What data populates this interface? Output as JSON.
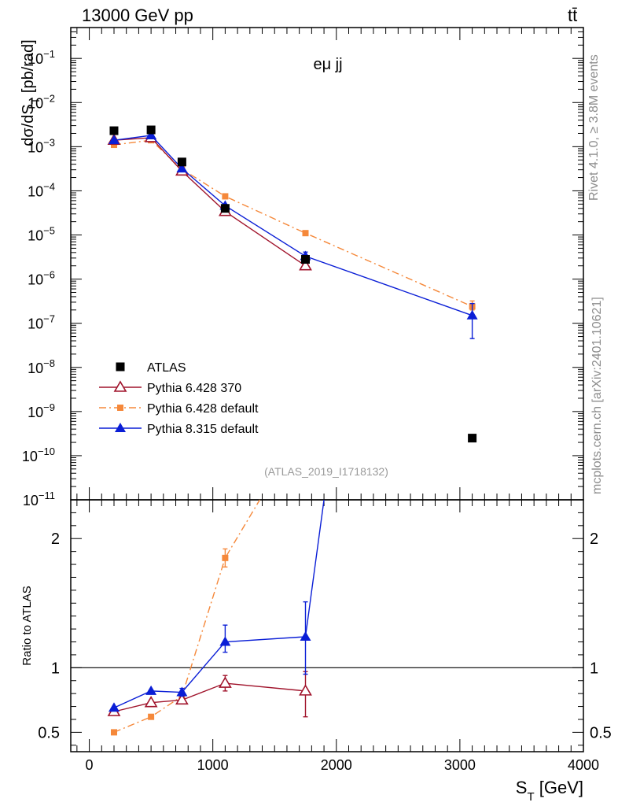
{
  "header": {
    "energy_label": "13000 GeV pp",
    "process_label": "tt̄"
  },
  "side_labels": {
    "rivet": "Rivet 4.1.0, ≥ 3.8M events",
    "mcplots": "mcplots.cern.ch [arXiv:2401.10621]"
  },
  "chart_data": [
    {
      "type": "scatter",
      "panel": "main",
      "title": "eμ jj",
      "subtitle": "(ATLAS_2019_I1718132)",
      "ylabel": "dσ/dS_T [pb/rad]",
      "yscale": "log",
      "ylim": [
        1e-11,
        0.5
      ],
      "xlim": [
        -150,
        4000
      ],
      "y_ticks": [
        {
          "exp": -11,
          "label_base": "10",
          "label_exp": "−11"
        },
        {
          "exp": -10,
          "label_base": "10",
          "label_exp": "−10"
        },
        {
          "exp": -9,
          "label_base": "10",
          "label_exp": "−9"
        },
        {
          "exp": -8,
          "label_base": "10",
          "label_exp": "−8"
        },
        {
          "exp": -7,
          "label_base": "10",
          "label_exp": "−7"
        },
        {
          "exp": -6,
          "label_base": "10",
          "label_exp": "−6"
        },
        {
          "exp": -5,
          "label_base": "10",
          "label_exp": "−5"
        },
        {
          "exp": -4,
          "label_base": "10",
          "label_exp": "−4"
        },
        {
          "exp": -3,
          "label_base": "10",
          "label_exp": "−3"
        },
        {
          "exp": -2,
          "label_base": "10",
          "label_exp": "−2"
        },
        {
          "exp": -1,
          "label_base": "10",
          "label_exp": "−1"
        }
      ],
      "legend_position": "lower-left",
      "series": [
        {
          "name": "ATLAS",
          "marker": "square",
          "color": "#000000",
          "line": "none",
          "x": [
            200,
            500,
            750,
            1100,
            1750,
            3100
          ],
          "y": [
            0.0023,
            0.0024,
            0.00045,
            4e-05,
            2.8e-06,
            2.5e-10
          ]
        },
        {
          "name": "Pythia 6.428 370",
          "marker": "open-triangle",
          "color": "#a0132b",
          "line": "solid",
          "x": [
            200,
            500,
            750,
            1100,
            1750
          ],
          "y": [
            0.0014,
            0.0016,
            0.00028,
            3.4e-05,
            2e-06
          ]
        },
        {
          "name": "Pythia 6.428 default",
          "marker": "small-square",
          "color": "#f5883a",
          "line": "dashdot",
          "x": [
            200,
            500,
            750,
            1100,
            1750,
            3100
          ],
          "y": [
            0.0011,
            0.0014,
            0.00031,
            7.5e-05,
            1.1e-05,
            2.4e-07
          ],
          "err_lo": [
            null,
            null,
            null,
            null,
            null,
            2e-07
          ],
          "err_hi": [
            null,
            null,
            null,
            null,
            null,
            3.2e-07
          ]
        },
        {
          "name": "Pythia 8.315 default",
          "marker": "filled-triangle",
          "color": "#0a1ed6",
          "line": "solid",
          "x": [
            200,
            500,
            750,
            1100,
            1750,
            3100
          ],
          "y": [
            0.0014,
            0.0018,
            0.00032,
            4.6e-05,
            3.3e-06,
            1.5e-07
          ],
          "err_lo": [
            null,
            null,
            null,
            null,
            2.6e-06,
            4.5e-08
          ],
          "err_hi": [
            null,
            null,
            null,
            null,
            4.1e-06,
            2.8e-07
          ]
        }
      ]
    },
    {
      "type": "scatter",
      "panel": "ratio",
      "ylabel": "Ratio to ATLAS",
      "xlabel": "S_T [GeV]",
      "ylim": [
        0.35,
        2.3
      ],
      "xlim": [
        -150,
        4000
      ],
      "x_ticks": [
        0,
        1000,
        2000,
        3000,
        4000
      ],
      "y_ticks": [
        0.5,
        1,
        2
      ],
      "y_tick_labels": [
        "0.5",
        "1",
        "2"
      ],
      "reference_line": 1,
      "series": [
        {
          "name": "Pythia 6.428 370",
          "marker": "open-triangle",
          "color": "#a0132b",
          "line": "solid",
          "x": [
            200,
            500,
            750,
            1100,
            1750
          ],
          "y": [
            0.66,
            0.73,
            0.75,
            0.88,
            0.82
          ],
          "err_lo": [
            null,
            null,
            0.72,
            0.82,
            0.62
          ],
          "err_hi": [
            null,
            null,
            0.78,
            0.94,
            0.97
          ]
        },
        {
          "name": "Pythia 6.428 default",
          "marker": "small-square",
          "color": "#f5883a",
          "line": "dashdot",
          "x": [
            200,
            500,
            750,
            1100,
            1380
          ],
          "y": [
            0.5,
            0.62,
            0.78,
            1.85,
            2.3
          ],
          "mark": [
            true,
            true,
            true,
            true,
            false
          ],
          "err_lo": [
            null,
            null,
            null,
            1.78,
            null
          ],
          "err_hi": [
            null,
            null,
            null,
            1.92,
            null
          ]
        },
        {
          "name": "Pythia 8.315 default",
          "marker": "filled-triangle",
          "color": "#0a1ed6",
          "line": "solid",
          "x": [
            200,
            500,
            750,
            1100,
            1750,
            1900
          ],
          "y": [
            0.69,
            0.82,
            0.81,
            1.2,
            1.24,
            2.3
          ],
          "mark": [
            true,
            true,
            true,
            true,
            true,
            false
          ],
          "err_lo": [
            null,
            null,
            0.78,
            1.12,
            0.95,
            null
          ],
          "err_hi": [
            null,
            null,
            0.84,
            1.33,
            1.51,
            null
          ]
        }
      ]
    }
  ]
}
